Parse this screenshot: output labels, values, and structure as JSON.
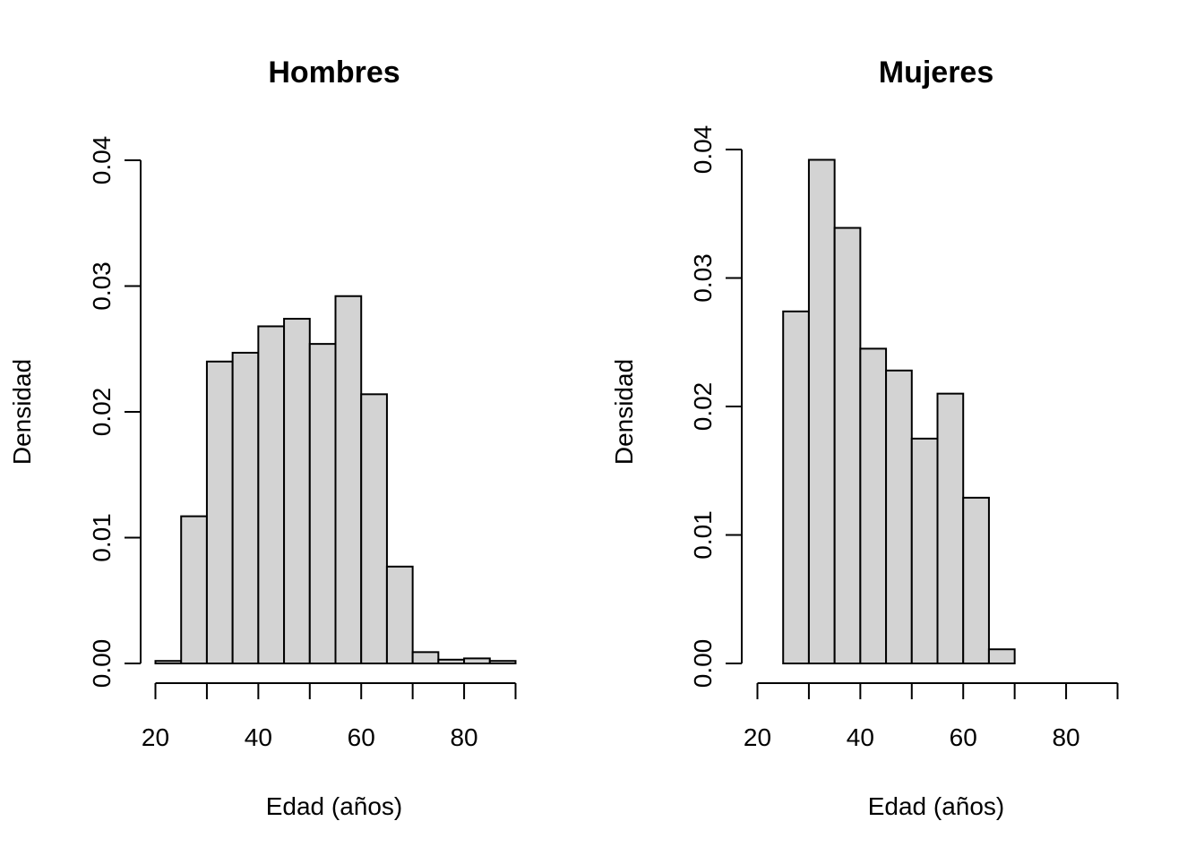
{
  "colors": {
    "bar_fill": "#d3d3d3",
    "bar_stroke": "#000000",
    "axis": "#000000"
  },
  "chart_data": [
    {
      "type": "bar",
      "title": "Hombres",
      "xlabel": "Edad (años)",
      "ylabel": "Densidad",
      "grid": false,
      "legend": "none",
      "xlim": [
        20,
        90
      ],
      "ylim": [
        0,
        0.04
      ],
      "x_ticks": [
        20,
        40,
        60,
        80
      ],
      "x_tick_labels": [
        "20",
        "40",
        "60",
        "80"
      ],
      "y_ticks": [
        0,
        0.01,
        0.02,
        0.03,
        0.04
      ],
      "y_tick_labels": [
        "0.00",
        "0.01",
        "0.02",
        "0.03",
        "0.04"
      ],
      "bins": [
        [
          20,
          25
        ],
        [
          25,
          30
        ],
        [
          30,
          35
        ],
        [
          35,
          40
        ],
        [
          40,
          45
        ],
        [
          45,
          50
        ],
        [
          50,
          55
        ],
        [
          55,
          60
        ],
        [
          60,
          65
        ],
        [
          65,
          70
        ],
        [
          70,
          75
        ],
        [
          75,
          80
        ],
        [
          80,
          85
        ],
        [
          85,
          90
        ]
      ],
      "values": [
        0.0002,
        0.0117,
        0.024,
        0.0247,
        0.0268,
        0.0274,
        0.0254,
        0.0292,
        0.0214,
        0.0077,
        0.0009,
        0.0003,
        0.0004,
        0.0002
      ]
    },
    {
      "type": "bar",
      "title": "Mujeres",
      "xlabel": "Edad (años)",
      "ylabel": "Densidad",
      "grid": false,
      "legend": "none",
      "xlim": [
        20,
        90
      ],
      "ylim": [
        0,
        0.04
      ],
      "x_ticks": [
        20,
        40,
        60,
        80
      ],
      "x_tick_labels": [
        "20",
        "40",
        "60",
        "80"
      ],
      "y_ticks": [
        0,
        0.01,
        0.02,
        0.03,
        0.04
      ],
      "y_tick_labels": [
        "0.00",
        "0.01",
        "0.02",
        "0.03",
        "0.04"
      ],
      "bins": [
        [
          25,
          30
        ],
        [
          30,
          35
        ],
        [
          35,
          40
        ],
        [
          40,
          45
        ],
        [
          45,
          50
        ],
        [
          50,
          55
        ],
        [
          55,
          60
        ],
        [
          60,
          65
        ],
        [
          65,
          70
        ]
      ],
      "values": [
        0.0274,
        0.0392,
        0.0339,
        0.0245,
        0.0228,
        0.0175,
        0.021,
        0.0129,
        0.0011
      ]
    }
  ]
}
